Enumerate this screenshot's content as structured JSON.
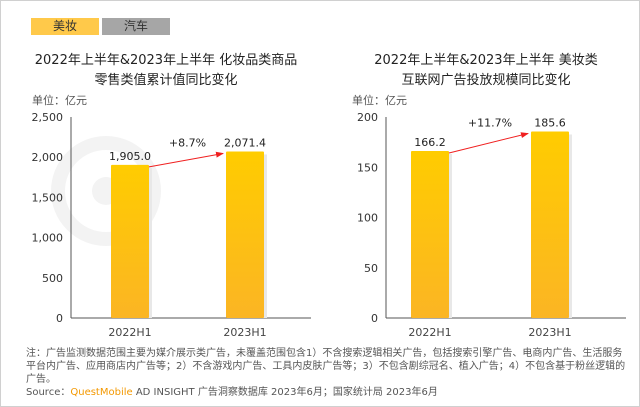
{
  "tabs": [
    {
      "label": "美妆",
      "active": true,
      "color": "#ffc94a"
    },
    {
      "label": "汽车",
      "active": false,
      "color": "#a6a6a6"
    }
  ],
  "watermark": "QUESTMOBILE",
  "chart_data": [
    {
      "type": "bar",
      "title": "2022年上半年&2023年上半年 化妆品类商品零售类值累计值同比变化",
      "title_lines": [
        "2022年上半年&2023年上半年 化妆品类商品",
        "零售类值累计值同比变化"
      ],
      "unit": "单位：亿元",
      "categories": [
        "2022H1",
        "2023H1"
      ],
      "values": [
        1905.0,
        2071.4
      ],
      "data_labels": [
        "1,905.0",
        "2,071.4"
      ],
      "yticks": [
        "0",
        "500",
        "1,000",
        "1,500",
        "2,000",
        "2,500"
      ],
      "ytick_values": [
        0,
        500,
        1000,
        1500,
        2000,
        2500
      ],
      "ylim": [
        0,
        2500
      ],
      "growth": "+8.7%",
      "color": "#ffc107"
    },
    {
      "type": "bar",
      "title": "2022年上半年&2023年上半年 美妆类互联网广告投放规模同比变化",
      "title_lines": [
        "2022年上半年&2023年上半年 美妆类",
        "互联网广告投放规模同比变化"
      ],
      "unit": "单位：亿元",
      "categories": [
        "2022H1",
        "2023H1"
      ],
      "values": [
        166.2,
        185.6
      ],
      "data_labels": [
        "166.2",
        "185.6"
      ],
      "yticks": [
        "0",
        "50",
        "100",
        "150",
        "200"
      ],
      "ytick_values": [
        0,
        50,
        100,
        150,
        200
      ],
      "ylim": [
        0,
        200
      ],
      "growth": "+11.7%",
      "color": "#ffc107"
    }
  ],
  "note": "注：广告监测数据范围主要为媒介展示类广告，未覆盖范围包含1）不含搜索逻辑相关广告，包括搜索引擎广告、电商内广告、生活服务平台内广告、应用商店内广告等；2）不含游戏内广告、工具内皮肤广告等；3）不包含剧综冠名、植入广告；4）不包含基于粉丝逻辑的广告。",
  "source": {
    "prefix": "Source：",
    "brand": "QuestMobile",
    "rest": " AD INSIGHT 广告洞察数据库 2023年6月；国家统计局 2023年6月"
  }
}
